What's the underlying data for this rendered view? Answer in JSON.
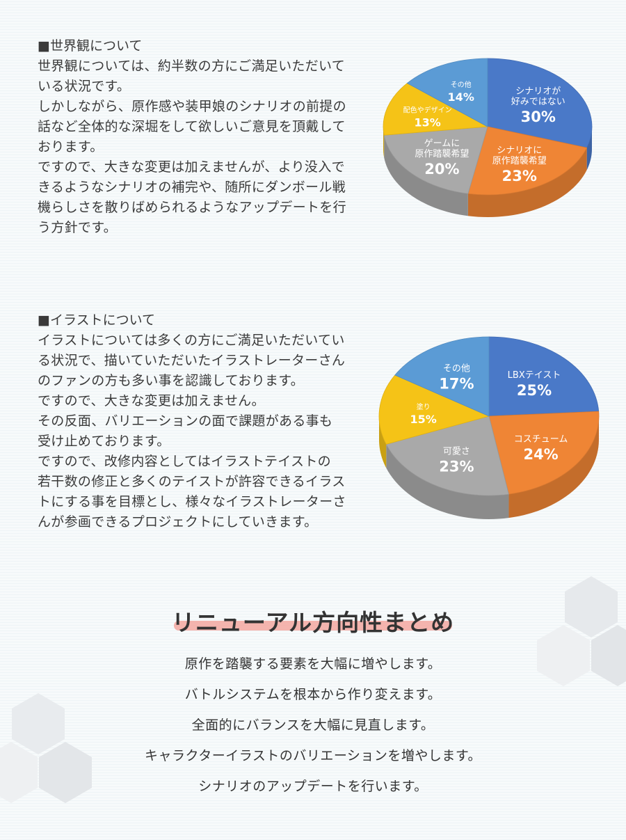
{
  "section_worldview": {
    "heading": "■世界観について",
    "paragraphs": [
      "世界観については、約半数の方にご満足いただいて",
      "いる状況です。",
      "しかしながら、原作感や装甲娘のシナリオの前提の",
      "話など全体的な深堀をして欲しいご意見を頂戴して",
      "おります。",
      "ですので、大きな変更は加えませんが、より没入で",
      "きるようなシナリオの補完や、随所にダンボール戦",
      "機らしさを散りばめられるようなアップデートを行",
      "う方針です。"
    ]
  },
  "section_illust": {
    "heading": "■イラストについて",
    "paragraphs": [
      "イラストについては多くの方にご満足いただいてい",
      "る状況で、描いていただいたイラストレーターさん",
      "のファンの方も多い事を認識しております。",
      "ですので、大きな変更は加えません。",
      "その反面、バリエーションの面で課題がある事も",
      "受け止めております。",
      "ですので、改修内容としてはイラストテイストの",
      "若干数の修正と多くのテイストが許容できるイラス",
      "トにする事を目標とし、様々なイラストレーターさ",
      "んが参画できるプロジェクトにしていきます。"
    ]
  },
  "chart_data": [
    {
      "type": "pie",
      "title": "",
      "slices": [
        {
          "label_lines": [
            "シナリオが",
            "好みではない"
          ],
          "value": 30,
          "value_label": "30%",
          "color": "#4a79c8"
        },
        {
          "label_lines": [
            "シナリオに",
            "原作踏襲希望"
          ],
          "value": 23,
          "value_label": "23%",
          "color": "#ef8535"
        },
        {
          "label_lines": [
            "ゲームに",
            "原作踏襲希望"
          ],
          "value": 20,
          "value_label": "20%",
          "color": "#a9a9a9"
        },
        {
          "label_lines": [
            "配色やデザイン"
          ],
          "value": 13,
          "value_label": "13%",
          "color": "#f5c317"
        },
        {
          "label_lines": [
            "その他"
          ],
          "value": 14,
          "value_label": "14%",
          "color": "#5b9bd5"
        }
      ]
    },
    {
      "type": "pie",
      "title": "",
      "slices": [
        {
          "label_lines": [
            "LBXテイスト"
          ],
          "value": 25,
          "value_label": "25%",
          "color": "#4a79c8"
        },
        {
          "label_lines": [
            "コスチューム"
          ],
          "value": 24,
          "value_label": "24%",
          "color": "#ef8535"
        },
        {
          "label_lines": [
            "可愛さ"
          ],
          "value": 23,
          "value_label": "23%",
          "color": "#a9a9a9"
        },
        {
          "label_lines": [
            "塗り"
          ],
          "value": 15,
          "value_label": "15%",
          "color": "#f5c317"
        },
        {
          "label_lines": [
            "その他"
          ],
          "value": 17,
          "value_label": "17%",
          "color": "#5b9bd5"
        }
      ]
    }
  ],
  "summary": {
    "title": "リニューアル方向性まとめ",
    "items": [
      "原作を踏襲する要素を大幅に増やします。",
      "バトルシステムを根本から作り変えます。",
      "全面的にバランスを大幅に見直します。",
      "キャラクターイラストのバリエーションを増やします。",
      "シナリオのアップデートを行います。"
    ]
  },
  "decoration": {
    "hex_color": "#e4e8ec"
  }
}
